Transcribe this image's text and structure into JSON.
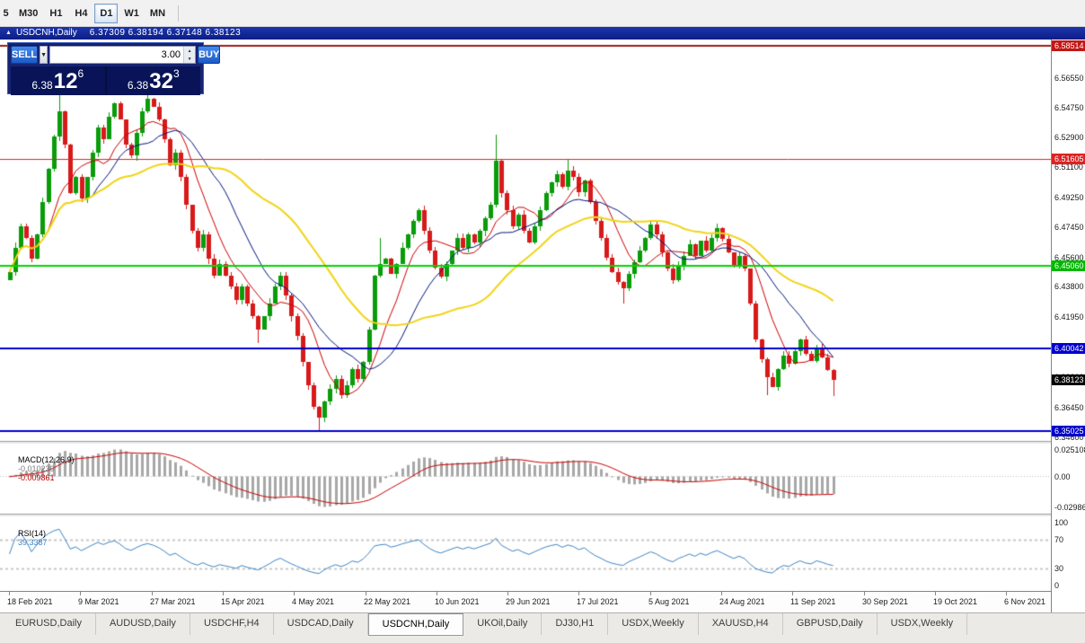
{
  "window": {
    "toolbar": {
      "timeframes": [
        "5",
        "M30",
        "H1",
        "H4",
        "D1",
        "W1",
        "MN"
      ],
      "active": "D1"
    },
    "title": {
      "symbol": "USDCNH,Daily",
      "ohlc": "6.37309 6.38194 6.37148 6.38123"
    }
  },
  "trade_panel": {
    "sell_label": "SELL",
    "buy_label": "BUY",
    "volume": "3.00",
    "bid": {
      "prefix": "6.38",
      "big": "12",
      "sup": "6"
    },
    "ask": {
      "prefix": "6.38",
      "big": "32",
      "sup": "3"
    }
  },
  "chart_data": {
    "type": "candlestick",
    "symbol": "USDCNH",
    "timeframe": "Daily",
    "ylim": [
      6.34395,
      6.58895
    ],
    "up_color": "#0a9c0a",
    "down_color": "#d81a1a",
    "wick_seed": 7,
    "wick_scale": 0.003,
    "closes": [
      6.447,
      6.462,
      6.475,
      6.468,
      6.455,
      6.47,
      6.49,
      6.51,
      6.53,
      6.545,
      6.525,
      6.495,
      6.505,
      6.492,
      6.505,
      6.52,
      6.535,
      6.528,
      6.542,
      6.55,
      6.54,
      6.525,
      6.518,
      6.532,
      6.545,
      6.553,
      6.548,
      6.54,
      6.528,
      6.512,
      6.52,
      6.505,
      6.488,
      6.472,
      6.462,
      6.47,
      6.455,
      6.445,
      6.452,
      6.445,
      6.438,
      6.43,
      6.438,
      6.428,
      6.42,
      6.412,
      6.42,
      6.428,
      6.438,
      6.445,
      6.433,
      6.42,
      6.408,
      6.392,
      6.378,
      6.365,
      6.358,
      6.368,
      6.376,
      6.382,
      6.372,
      6.378,
      6.388,
      6.382,
      6.392,
      6.412,
      6.445,
      6.452,
      6.455,
      6.446,
      6.452,
      6.462,
      6.47,
      6.478,
      6.485,
      6.472,
      6.46,
      6.45,
      6.444,
      6.452,
      6.46,
      6.468,
      6.462,
      6.47,
      6.465,
      6.472,
      6.48,
      6.488,
      6.515,
      6.495,
      6.485,
      6.475,
      6.482,
      6.472,
      6.465,
      6.475,
      6.485,
      6.495,
      6.502,
      6.507,
      6.499,
      6.509,
      6.505,
      6.496,
      6.503,
      6.49,
      6.478,
      6.468,
      6.456,
      6.447,
      6.441,
      6.437,
      6.446,
      6.453,
      6.46,
      6.468,
      6.476,
      6.47,
      6.459,
      6.449,
      6.442,
      6.451,
      6.457,
      6.464,
      6.457,
      6.466,
      6.46,
      6.468,
      6.474,
      6.467,
      6.459,
      6.451,
      6.457,
      6.449,
      6.428,
      6.406,
      6.394,
      6.383,
      6.377,
      6.388,
      6.396,
      6.391,
      6.399,
      6.406,
      6.397,
      6.393,
      6.401,
      6.395,
      6.387,
      6.38123
    ],
    "wick_overrides": {
      "9": {
        "high": 6.556
      },
      "25": {
        "high": 6.558
      },
      "45": {
        "low": 6.4035
      },
      "56": {
        "low": 6.3505
      },
      "67": {
        "high": 6.468
      },
      "88": {
        "high": 6.531
      },
      "101": {
        "high": 6.516
      },
      "111": {
        "low": 6.428
      },
      "137": {
        "low": 6.372
      },
      "149": {
        "low": 6.3715
      }
    },
    "ma": [
      {
        "name": "ma-fast",
        "period": 8,
        "color": "#cc0000",
        "width": 1
      },
      {
        "name": "ma-mid",
        "period": 16,
        "color": "#00157e",
        "width": 1
      },
      {
        "name": "ma-slow",
        "period": 34,
        "color": "#f2d415",
        "width": 2
      }
    ],
    "hlines": [
      {
        "price": 6.58514,
        "label": "6.58514",
        "color": "#9b1c1c",
        "width": 2,
        "label_bg": "#c01818"
      },
      {
        "price": 6.51605,
        "label": "6.51605",
        "color": "#dd2222",
        "width": 1,
        "label_bg": "#dd2222"
      },
      {
        "price": 6.4506,
        "label": "6.45060",
        "color": "#00d800",
        "width": 2,
        "label_bg": "#00b800"
      },
      {
        "price": 6.40042,
        "label": "6.40042",
        "color": "#0000cd",
        "width": 2,
        "label_bg": "#0000cd"
      },
      {
        "price": 6.35025,
        "label": "6.35025",
        "color": "#0000cd",
        "width": 2,
        "label_bg": "#0000cd"
      }
    ],
    "current_price": {
      "value": 6.38123,
      "label": "6.38123",
      "label_bg": "#050505"
    },
    "price_ticks": [
      "6.58400",
      "6.56550",
      "6.54750",
      "6.52900",
      "6.51100",
      "6.49250",
      "6.47450",
      "6.45600",
      "6.43800",
      "6.41950",
      "6.40150",
      "6.38300",
      "6.36450",
      "6.34600"
    ],
    "date_ticks": [
      "18 Feb 2021",
      "9 Mar 2021",
      "27 Mar 2021",
      "15 Apr 2021",
      "4 May 2021",
      "22 May 2021",
      "10 Jun 2021",
      "29 Jun 2021",
      "17 Jul 2021",
      "5 Aug 2021",
      "24 Aug 2021",
      "11 Sep 2021",
      "30 Sep 2021",
      "19 Oct 2021",
      "6 Nov 2021"
    ],
    "indicators": {
      "macd": {
        "name": "MACD(12,26,9)",
        "value_main": "-0.010239",
        "value_signal": "-0.009861",
        "fast": 12,
        "slow": 26,
        "signal": 9,
        "axis_top": "0.025108",
        "axis_zero": "0.00",
        "axis_bottom": "-0.029868",
        "hist_color": "#a8a8a8",
        "signal_color": "#cc0000"
      },
      "rsi": {
        "name": "RSI(14)",
        "value": "39.3387",
        "period": 14,
        "axis_labels": [
          100,
          70,
          30,
          0
        ],
        "levels": [
          70,
          30
        ],
        "color": "#3d85c6"
      }
    }
  },
  "tabs": {
    "items": [
      "EURUSD,Daily",
      "AUDUSD,Daily",
      "USDCHF,H4",
      "USDCAD,Daily",
      "USDCNH,Daily",
      "UKOil,Daily",
      "DJ30,H1",
      "USDX,Weekly",
      "XAUUSD,H4",
      "GBPUSD,Daily",
      "USDX,Weekly"
    ],
    "active_index": 4
  }
}
